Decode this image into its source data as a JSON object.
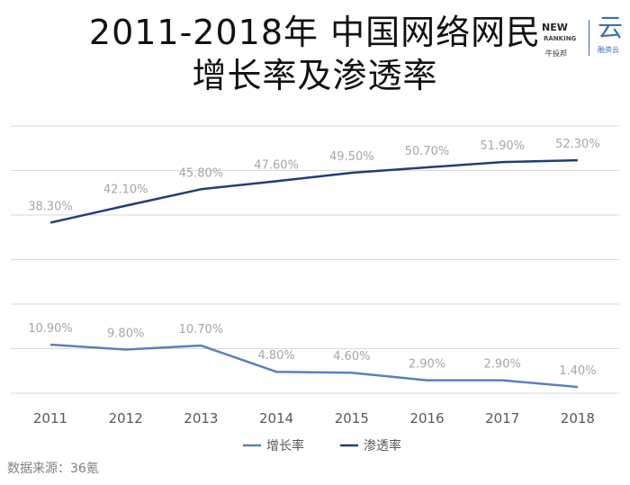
{
  "title_line1": "2011-2018年 中国网络网民",
  "title_line2": "增长率及渗透率",
  "logos": {
    "left_top": "NEW",
    "left_mid": "RANKING",
    "left_bottom": "牛投邦",
    "right_glyph": "云",
    "right_text": "融资云"
  },
  "source": "数据来源：36氪",
  "colors": {
    "growth": "#5b7fc0",
    "penetration": "#1f3d7a",
    "grid": "#d9d9d9",
    "label": "#a6a6a6",
    "tick": "#595959"
  },
  "chart_data": {
    "type": "line",
    "x": [
      "2011",
      "2012",
      "2013",
      "2014",
      "2015",
      "2016",
      "2017",
      "2018"
    ],
    "series": [
      {
        "name": "增长率",
        "values": [
          10.9,
          9.8,
          10.7,
          4.8,
          4.6,
          2.9,
          2.9,
          1.4
        ],
        "labels": [
          "10.90%",
          "9.80%",
          "10.70%",
          "4.80%",
          "4.60%",
          "2.90%",
          "2.90%",
          "1.40%"
        ]
      },
      {
        "name": "渗透率",
        "values": [
          38.3,
          42.1,
          45.8,
          47.6,
          49.5,
          50.7,
          51.9,
          52.3
        ],
        "labels": [
          "38.30%",
          "42.10%",
          "45.80%",
          "47.60%",
          "49.50%",
          "50.70%",
          "51.90%",
          "52.30%"
        ]
      }
    ],
    "ylim": [
      0,
      60
    ],
    "grid": true,
    "legend": "bottom",
    "yaxis_labels_shown": false
  }
}
